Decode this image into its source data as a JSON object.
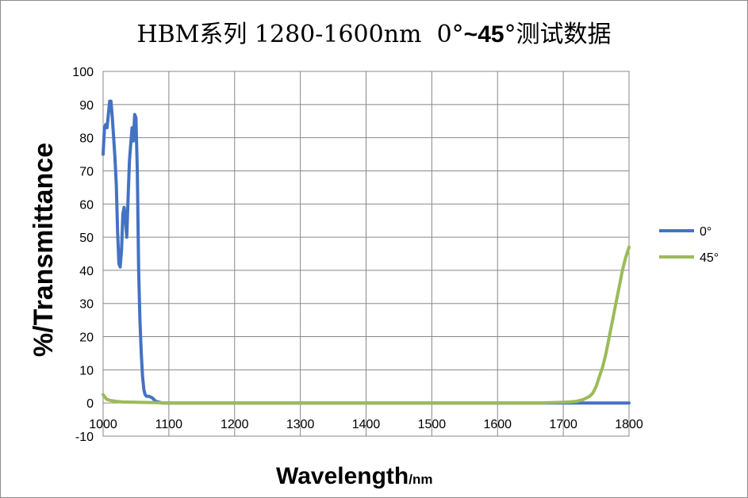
{
  "chart_data": {
    "type": "line",
    "title": "HBM系列 1280-1600nm  0°~45°测试数据",
    "title_parts": {
      "main": "HBM系列 1280-1600nm  0°",
      "bold": "~45",
      "tail": "°测试数据"
    },
    "xlabel": "Wavelength",
    "xlabel_unit": "/nm",
    "ylabel": "%/Transmittance",
    "xlim": [
      1000,
      1800
    ],
    "ylim": [
      -10,
      100
    ],
    "x_ticks": [
      1000,
      1100,
      1200,
      1300,
      1400,
      1500,
      1600,
      1700,
      1800
    ],
    "y_ticks": [
      -10,
      0,
      10,
      20,
      30,
      40,
      50,
      60,
      70,
      80,
      90,
      100
    ],
    "grid": true,
    "legend_position": "right",
    "series": [
      {
        "name": "0°",
        "color": "#4472C4",
        "x": [
          1000,
          1002,
          1004,
          1006,
          1008,
          1010,
          1012,
          1014,
          1016,
          1018,
          1020,
          1022,
          1024,
          1026,
          1028,
          1030,
          1032,
          1034,
          1036,
          1038,
          1040,
          1042,
          1044,
          1046,
          1048,
          1050,
          1052,
          1054,
          1056,
          1058,
          1060,
          1062,
          1064,
          1066,
          1068,
          1070,
          1075,
          1080,
          1090,
          1100,
          1150,
          1200,
          1300,
          1400,
          1500,
          1600,
          1700,
          1800
        ],
        "y": [
          75,
          83,
          84,
          83,
          87,
          91,
          91,
          86,
          80,
          74,
          66,
          52,
          42,
          41,
          46,
          57,
          59,
          55,
          50,
          62,
          73,
          78,
          83,
          79,
          87,
          86,
          70,
          40,
          25,
          15,
          8,
          4,
          2.5,
          2,
          2,
          2,
          1.5,
          0.5,
          0,
          0,
          0,
          0,
          0,
          0,
          0,
          0,
          0,
          0
        ]
      },
      {
        "name": "45°",
        "color": "#9BBB59",
        "x": [
          1000,
          1005,
          1010,
          1020,
          1030,
          1050,
          1080,
          1100,
          1200,
          1300,
          1400,
          1500,
          1600,
          1650,
          1680,
          1700,
          1710,
          1720,
          1730,
          1740,
          1745,
          1750,
          1755,
          1760,
          1765,
          1770,
          1775,
          1780,
          1785,
          1790,
          1795,
          1800
        ],
        "y": [
          2.5,
          1.2,
          0.8,
          0.5,
          0.3,
          0.2,
          0.1,
          0,
          0,
          0,
          0,
          0,
          0,
          0,
          0.1,
          0.2,
          0.3,
          0.5,
          1,
          2,
          3,
          5,
          8,
          11,
          15,
          20,
          25,
          30,
          35,
          40,
          44,
          47
        ]
      }
    ]
  }
}
